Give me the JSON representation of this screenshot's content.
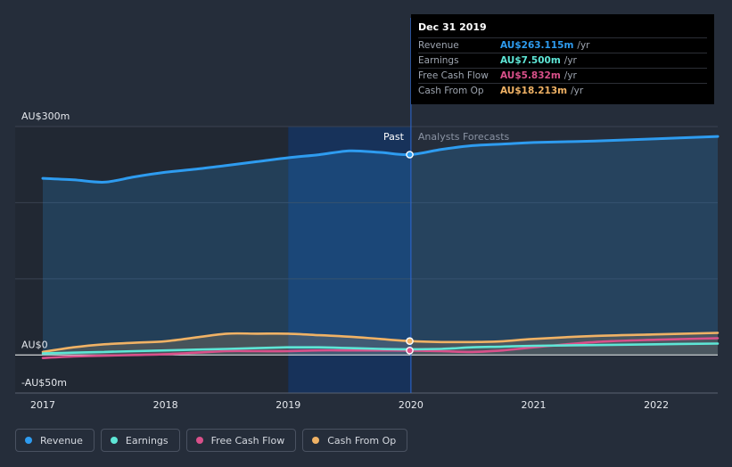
{
  "tooltip": {
    "date": "Dec 31 2019",
    "rows": [
      {
        "name": "Revenue",
        "value": "AU$263.115m",
        "unit": "/yr",
        "color": "#2e9cf0"
      },
      {
        "name": "Earnings",
        "value": "AU$7.500m",
        "unit": "/yr",
        "color": "#5ee6d6"
      },
      {
        "name": "Free Cash Flow",
        "value": "AU$5.832m",
        "unit": "/yr",
        "color": "#d9508a"
      },
      {
        "name": "Cash From Op",
        "value": "AU$18.213m",
        "unit": "/yr",
        "color": "#f0b265"
      }
    ]
  },
  "legend": [
    {
      "label": "Revenue",
      "color": "#2e9cf0"
    },
    {
      "label": "Earnings",
      "color": "#5ee6d6"
    },
    {
      "label": "Free Cash Flow",
      "color": "#d9508a"
    },
    {
      "label": "Cash From Op",
      "color": "#f0b265"
    }
  ],
  "chart_data": {
    "type": "line",
    "title": "",
    "xlabel": "",
    "ylabel": "",
    "xlim": [
      2017,
      2022.5
    ],
    "ylim": [
      -50,
      300
    ],
    "x_ticks": [
      2017,
      2018,
      2019,
      2020,
      2021,
      2022
    ],
    "y_tick_labels": [
      {
        "value": 300,
        "label": "AU$300m"
      },
      {
        "value": 0,
        "label": "AU$0"
      },
      {
        "value": -50,
        "label": "-AU$50m"
      }
    ],
    "divider_x": 2020,
    "past_label": "Past",
    "forecast_label": "Analysts Forecasts",
    "highlight": {
      "x": 2019.99
    },
    "series": [
      {
        "name": "Revenue",
        "color": "#2e9cf0",
        "area": true,
        "points": [
          [
            2017,
            232
          ],
          [
            2017.25,
            230
          ],
          [
            2017.5,
            227
          ],
          [
            2017.75,
            234
          ],
          [
            2018,
            240
          ],
          [
            2018.25,
            244
          ],
          [
            2018.5,
            249
          ],
          [
            2018.75,
            254
          ],
          [
            2019,
            259
          ],
          [
            2019.25,
            263
          ],
          [
            2019.5,
            268
          ],
          [
            2019.75,
            266
          ],
          [
            2019.99,
            263.115
          ],
          [
            2020.25,
            270
          ],
          [
            2020.5,
            275
          ],
          [
            2020.75,
            277
          ],
          [
            2021,
            279
          ],
          [
            2021.5,
            281
          ],
          [
            2022,
            284
          ],
          [
            2022.5,
            287
          ]
        ]
      },
      {
        "name": "Earnings",
        "color": "#5ee6d6",
        "area": false,
        "points": [
          [
            2017,
            2
          ],
          [
            2017.25,
            3
          ],
          [
            2017.5,
            4
          ],
          [
            2017.75,
            5
          ],
          [
            2018,
            6
          ],
          [
            2018.25,
            7
          ],
          [
            2018.5,
            8
          ],
          [
            2018.75,
            9
          ],
          [
            2019,
            10
          ],
          [
            2019.25,
            10
          ],
          [
            2019.5,
            9
          ],
          [
            2019.75,
            8
          ],
          [
            2019.99,
            7.5
          ],
          [
            2020.25,
            8
          ],
          [
            2020.5,
            10
          ],
          [
            2020.75,
            11
          ],
          [
            2021,
            12
          ],
          [
            2021.5,
            13
          ],
          [
            2022,
            14
          ],
          [
            2022.5,
            15
          ]
        ]
      },
      {
        "name": "Free Cash Flow",
        "color": "#d9508a",
        "area": false,
        "points": [
          [
            2017,
            -4
          ],
          [
            2017.25,
            -2
          ],
          [
            2017.5,
            -1
          ],
          [
            2017.75,
            0
          ],
          [
            2018,
            1
          ],
          [
            2018.25,
            3
          ],
          [
            2018.5,
            5
          ],
          [
            2018.75,
            5
          ],
          [
            2019,
            5
          ],
          [
            2019.25,
            6
          ],
          [
            2019.5,
            6
          ],
          [
            2019.75,
            6
          ],
          [
            2019.99,
            5.832
          ],
          [
            2020.25,
            5
          ],
          [
            2020.5,
            4
          ],
          [
            2020.75,
            6
          ],
          [
            2021,
            10
          ],
          [
            2021.5,
            17
          ],
          [
            2022,
            20
          ],
          [
            2022.5,
            22
          ]
        ]
      },
      {
        "name": "Cash From Op",
        "color": "#f0b265",
        "area": true,
        "points": [
          [
            2017,
            4
          ],
          [
            2017.25,
            10
          ],
          [
            2017.5,
            14
          ],
          [
            2017.75,
            16
          ],
          [
            2018,
            18
          ],
          [
            2018.25,
            23
          ],
          [
            2018.5,
            28
          ],
          [
            2018.75,
            28
          ],
          [
            2019,
            28
          ],
          [
            2019.25,
            26
          ],
          [
            2019.5,
            24
          ],
          [
            2019.75,
            21
          ],
          [
            2019.99,
            18.213
          ],
          [
            2020.25,
            17
          ],
          [
            2020.5,
            17
          ],
          [
            2020.75,
            18
          ],
          [
            2021,
            21
          ],
          [
            2021.5,
            25
          ],
          [
            2022,
            27
          ],
          [
            2022.5,
            29
          ]
        ]
      }
    ]
  }
}
